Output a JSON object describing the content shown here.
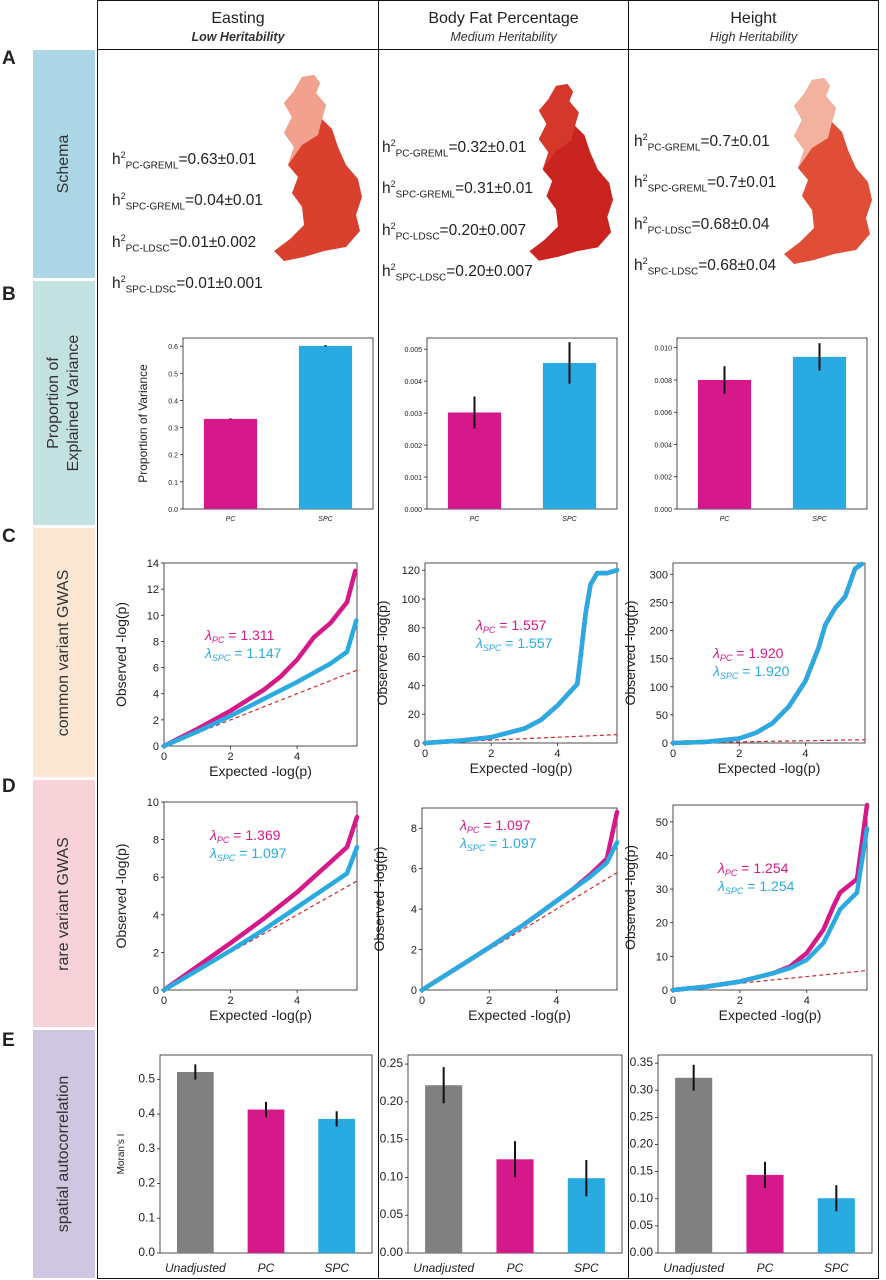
{
  "colors": {
    "pc": "#d6198a",
    "spc": "#29abe2",
    "unadjusted": "#808080",
    "ref_line": "#d62728"
  },
  "row_letters": [
    "A",
    "B",
    "C",
    "D",
    "E"
  ],
  "row_labels": {
    "schema": "Schema",
    "pev_line1": "Proportion of",
    "pev_line2": "Explained Variance",
    "common": "common variant GWAS",
    "rare": "rare variant GWAS",
    "spatial": "spatial autocorrelation"
  },
  "columns": [
    {
      "title": "Easting",
      "subtitle": "Low Heritability",
      "h2": [
        {
          "sub": "PC-GREML",
          "val": "=0.63±0.01"
        },
        {
          "sub": "SPC-GREML",
          "val": "=0.04±0.01"
        },
        {
          "sub": "PC-LDSC",
          "val": "=0.01±0.002"
        },
        {
          "sub": "SPC-LDSC",
          "val": "=0.01±0.001"
        }
      ]
    },
    {
      "title": "Body Fat Percentage",
      "subtitle": "Medium Heritability",
      "h2": [
        {
          "sub": "PC-GREML",
          "val": "=0.32±0.01"
        },
        {
          "sub": "SPC-GREML",
          "val": "=0.31±0.01"
        },
        {
          "sub": "PC-LDSC",
          "val": "=0.20±0.007"
        },
        {
          "sub": "SPC-LDSC",
          "val": "=0.20±0.007"
        }
      ]
    },
    {
      "title": "Height",
      "subtitle": "High Heritability",
      "h2": [
        {
          "sub": "PC-GREML",
          "val": "=0.7±0.01"
        },
        {
          "sub": "SPC-GREML",
          "val": "=0.7±0.01"
        },
        {
          "sub": "PC-LDSC",
          "val": "=0.68±0.04"
        },
        {
          "sub": "SPC-LDSC",
          "val": "=0.68±0.04"
        }
      ]
    }
  ],
  "chart_data": [
    {
      "id": "B1",
      "type": "bar",
      "ylabel": "Proportion of Variance",
      "categories": [
        "PC",
        "SPC"
      ],
      "values": [
        0.332,
        0.601
      ],
      "errors": [
        0.002,
        0.003
      ],
      "ylim": [
        0,
        0.63
      ],
      "ticks": [
        "0.0",
        "0.1",
        "0.2",
        "0.3",
        "0.4",
        "0.5",
        "0.6"
      ]
    },
    {
      "id": "B2",
      "type": "bar",
      "ylabel": "",
      "categories": [
        "PC",
        "SPC"
      ],
      "values": [
        0.00302,
        0.00457
      ],
      "errors": [
        0.0005,
        0.00065
      ],
      "ylim": [
        0,
        0.00535
      ],
      "ticks": [
        "0.000",
        "0.001",
        "0.002",
        "0.003",
        "0.004",
        "0.005"
      ]
    },
    {
      "id": "B3",
      "type": "bar",
      "ylabel": "",
      "categories": [
        "PC",
        "SPC"
      ],
      "values": [
        0.008,
        0.00943
      ],
      "errors": [
        0.00085,
        0.00085
      ],
      "ylim": [
        0,
        0.0106
      ],
      "ticks": [
        "0.000",
        "0.002",
        "0.004",
        "0.006",
        "0.008",
        "0.010"
      ]
    },
    {
      "id": "C1",
      "type": "scatter",
      "xlabel": "Expected -log(p)",
      "ylabel": "Observed -log(p)",
      "xlim": [
        0,
        5.8
      ],
      "ylim": [
        0,
        14
      ],
      "xticks": [
        "0",
        "2",
        "4"
      ],
      "yticks": [
        "0",
        "2",
        "4",
        "6",
        "8",
        "10",
        "12",
        "14"
      ],
      "lambda_pc": "1.311",
      "lambda_spc": "1.147",
      "pc_curve": [
        [
          0,
          0
        ],
        [
          1,
          1.3
        ],
        [
          2,
          2.7
        ],
        [
          3,
          4.3
        ],
        [
          3.5,
          5.3
        ],
        [
          4,
          6.6
        ],
        [
          4.5,
          8.3
        ],
        [
          5,
          9.4
        ],
        [
          5.5,
          11
        ],
        [
          5.75,
          13.4
        ]
      ],
      "spc_curve": [
        [
          0,
          0
        ],
        [
          1,
          1.1
        ],
        [
          2,
          2.3
        ],
        [
          3,
          3.6
        ],
        [
          4,
          4.9
        ],
        [
          4.5,
          5.6
        ],
        [
          5,
          6.3
        ],
        [
          5.5,
          7.2
        ],
        [
          5.78,
          9.6
        ]
      ]
    },
    {
      "id": "C2",
      "type": "scatter",
      "xlabel": "Expected -log(p)",
      "ylabel": "Observed -log(p)",
      "xlim": [
        0,
        5.8
      ],
      "ylim": [
        0,
        125
      ],
      "xticks": [
        "0",
        "2",
        "4"
      ],
      "yticks": [
        "0",
        "20",
        "40",
        "60",
        "80",
        "100",
        "120"
      ],
      "lambda_pc": "1.557",
      "lambda_spc": "1.557",
      "pc_curve": [
        [
          0,
          0
        ],
        [
          1,
          1.5
        ],
        [
          2,
          4
        ],
        [
          3,
          10
        ],
        [
          3.5,
          16
        ],
        [
          4,
          26
        ],
        [
          4.4,
          36
        ],
        [
          4.6,
          41
        ],
        [
          4.7,
          60
        ],
        [
          4.85,
          90
        ],
        [
          5,
          110
        ],
        [
          5.2,
          118
        ],
        [
          5.5,
          118
        ],
        [
          5.8,
          120
        ]
      ],
      "spc_curve": [
        [
          0,
          0
        ],
        [
          1,
          1.5
        ],
        [
          2,
          4
        ],
        [
          3,
          10
        ],
        [
          3.5,
          16
        ],
        [
          4,
          26
        ],
        [
          4.4,
          36
        ],
        [
          4.6,
          41
        ],
        [
          4.7,
          60
        ],
        [
          4.85,
          90
        ],
        [
          5,
          110
        ],
        [
          5.2,
          118
        ],
        [
          5.5,
          118
        ],
        [
          5.8,
          120
        ]
      ]
    },
    {
      "id": "C3",
      "type": "scatter",
      "xlabel": "Expected -log(p)",
      "ylabel": "Observed -log(p)",
      "xlim": [
        0,
        5.8
      ],
      "ylim": [
        0,
        320
      ],
      "xticks": [
        "0",
        "2",
        "4"
      ],
      "yticks": [
        "0",
        "50",
        "100",
        "150",
        "200",
        "250",
        "300"
      ],
      "lambda_pc": "1.920",
      "lambda_spc": "1.920",
      "pc_curve": [
        [
          0,
          0
        ],
        [
          1,
          2
        ],
        [
          2,
          8
        ],
        [
          2.5,
          18
        ],
        [
          3,
          35
        ],
        [
          3.5,
          65
        ],
        [
          4,
          110
        ],
        [
          4.4,
          170
        ],
        [
          4.6,
          210
        ],
        [
          4.9,
          240
        ],
        [
          5.2,
          260
        ],
        [
          5.5,
          310
        ],
        [
          5.7,
          318
        ]
      ],
      "spc_curve": [
        [
          0,
          0
        ],
        [
          1,
          2
        ],
        [
          2,
          8
        ],
        [
          2.5,
          18
        ],
        [
          3,
          35
        ],
        [
          3.5,
          65
        ],
        [
          4,
          110
        ],
        [
          4.4,
          170
        ],
        [
          4.6,
          210
        ],
        [
          4.9,
          240
        ],
        [
          5.2,
          260
        ],
        [
          5.5,
          310
        ],
        [
          5.7,
          318
        ]
      ]
    },
    {
      "id": "D1",
      "type": "scatter",
      "xlabel": "Expected -log(p)",
      "ylabel": "Observed -log(p)",
      "xlim": [
        0,
        5.8
      ],
      "ylim": [
        0,
        10
      ],
      "xticks": [
        "0",
        "2",
        "4"
      ],
      "yticks": [
        "0",
        "2",
        "4",
        "6",
        "8",
        "10"
      ],
      "lambda_pc": "1.369",
      "lambda_spc": "1.097",
      "pc_curve": [
        [
          0,
          0
        ],
        [
          1,
          1.25
        ],
        [
          2,
          2.5
        ],
        [
          3,
          3.8
        ],
        [
          4,
          5.2
        ],
        [
          4.5,
          6
        ],
        [
          5,
          6.8
        ],
        [
          5.5,
          7.6
        ],
        [
          5.8,
          9.2
        ]
      ],
      "spc_curve": [
        [
          0,
          0
        ],
        [
          1,
          1.05
        ],
        [
          2,
          2.1
        ],
        [
          3,
          3.2
        ],
        [
          4,
          4.4
        ],
        [
          4.5,
          5
        ],
        [
          5,
          5.6
        ],
        [
          5.5,
          6.2
        ],
        [
          5.8,
          7.6
        ]
      ]
    },
    {
      "id": "D2",
      "type": "scatter",
      "xlabel": "Expected -log(p)",
      "ylabel": "Observed -log(p)",
      "xlim": [
        0,
        5.8
      ],
      "ylim": [
        0,
        9
      ],
      "xticks": [
        "0",
        "2",
        "4"
      ],
      "yticks": [
        "0",
        "2",
        "4",
        "6",
        "8"
      ],
      "lambda_pc": "1.097",
      "lambda_spc": "1.097",
      "pc_curve": [
        [
          0,
          0
        ],
        [
          1,
          1.05
        ],
        [
          2,
          2.1
        ],
        [
          3,
          3.2
        ],
        [
          4,
          4.4
        ],
        [
          4.5,
          5
        ],
        [
          5,
          5.7
        ],
        [
          5.5,
          6.5
        ],
        [
          5.8,
          8.8
        ]
      ],
      "spc_curve": [
        [
          0,
          0
        ],
        [
          1,
          1.05
        ],
        [
          2,
          2.1
        ],
        [
          3,
          3.2
        ],
        [
          4,
          4.4
        ],
        [
          4.5,
          5
        ],
        [
          5,
          5.6
        ],
        [
          5.5,
          6.3
        ],
        [
          5.8,
          7.3
        ]
      ]
    },
    {
      "id": "D3",
      "type": "scatter",
      "xlabel": "Expected -log(p)",
      "ylabel": "Observed -log(p)",
      "xlim": [
        0,
        5.8
      ],
      "ylim": [
        0,
        55
      ],
      "xticks": [
        "0",
        "2",
        "4"
      ],
      "yticks": [
        "0",
        "10",
        "20",
        "30",
        "40",
        "50"
      ],
      "lambda_pc": "1.254",
      "lambda_spc": "1.254",
      "pc_curve": [
        [
          0,
          0
        ],
        [
          1,
          1
        ],
        [
          2,
          2.5
        ],
        [
          3,
          5
        ],
        [
          3.5,
          7
        ],
        [
          4,
          11
        ],
        [
          4.5,
          18
        ],
        [
          4.8,
          25
        ],
        [
          5,
          29
        ],
        [
          5.5,
          33
        ],
        [
          5.8,
          55
        ]
      ],
      "spc_curve": [
        [
          0,
          0
        ],
        [
          1,
          1
        ],
        [
          2,
          2.5
        ],
        [
          3,
          5
        ],
        [
          3.5,
          6.5
        ],
        [
          4,
          9
        ],
        [
          4.5,
          14
        ],
        [
          4.8,
          20
        ],
        [
          5,
          24
        ],
        [
          5.5,
          29
        ],
        [
          5.8,
          48
        ]
      ]
    },
    {
      "id": "E1",
      "type": "bar",
      "ylabel": "Moran's I",
      "categories": [
        "Unadjusted",
        "PC",
        "SPC"
      ],
      "values": [
        0.521,
        0.413,
        0.386
      ],
      "errors": [
        0.022,
        0.022,
        0.022
      ],
      "ylim": [
        0,
        0.57
      ],
      "ticks": [
        "0.0",
        "0.1",
        "0.2",
        "0.3",
        "0.4",
        "0.5"
      ]
    },
    {
      "id": "E2",
      "type": "bar",
      "ylabel": "",
      "categories": [
        "Unadjusted",
        "PC",
        "SPC"
      ],
      "values": [
        0.222,
        0.124,
        0.099
      ],
      "errors": [
        0.024,
        0.024,
        0.024
      ],
      "ylim": [
        0,
        0.262
      ],
      "ticks": [
        "0.00",
        "0.05",
        "0.10",
        "0.15",
        "0.20",
        "0.25"
      ]
    },
    {
      "id": "E3",
      "type": "bar",
      "ylabel": "",
      "categories": [
        "Unadjusted",
        "PC",
        "SPC"
      ],
      "values": [
        0.323,
        0.144,
        0.101
      ],
      "errors": [
        0.024,
        0.024,
        0.024
      ],
      "ylim": [
        0,
        0.365
      ],
      "ticks": [
        "0.00",
        "0.05",
        "0.10",
        "0.15",
        "0.20",
        "0.25",
        "0.30",
        "0.35"
      ]
    }
  ]
}
